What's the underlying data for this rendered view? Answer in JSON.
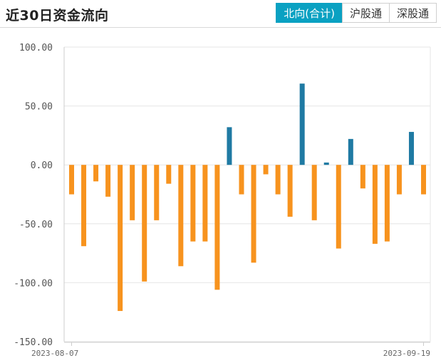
{
  "header": {
    "title": "近30日资金流向",
    "tabs": [
      {
        "label": "北向(合计)",
        "active": true
      },
      {
        "label": "沪股通",
        "active": false
      },
      {
        "label": "深股通",
        "active": false
      }
    ]
  },
  "colors": {
    "positive": "#1f7aa3",
    "negative": "#f7931e",
    "grid": "#e6e6e6",
    "active_tab": "#0aa1c2"
  },
  "chart_data": {
    "type": "bar",
    "ylim": [
      -150,
      100
    ],
    "yticks": [
      "100.00",
      "50.00",
      "0.00",
      "-50.00",
      "-100.00",
      "-150.00"
    ],
    "ytick_values": [
      100,
      50,
      0,
      -50,
      -100,
      -150
    ],
    "x_start_label": "2023-08-07",
    "x_end_label": "2023-09-19",
    "grid": true,
    "values": [
      -25,
      -69,
      -14,
      -27,
      -124,
      -47,
      -99,
      -47,
      -16,
      -86,
      -65,
      -65,
      -106,
      32,
      -25,
      -83,
      -8,
      -25,
      -44,
      69,
      -47,
      2,
      -71,
      22,
      -20,
      -67,
      -65,
      -25,
      28,
      -25
    ]
  }
}
